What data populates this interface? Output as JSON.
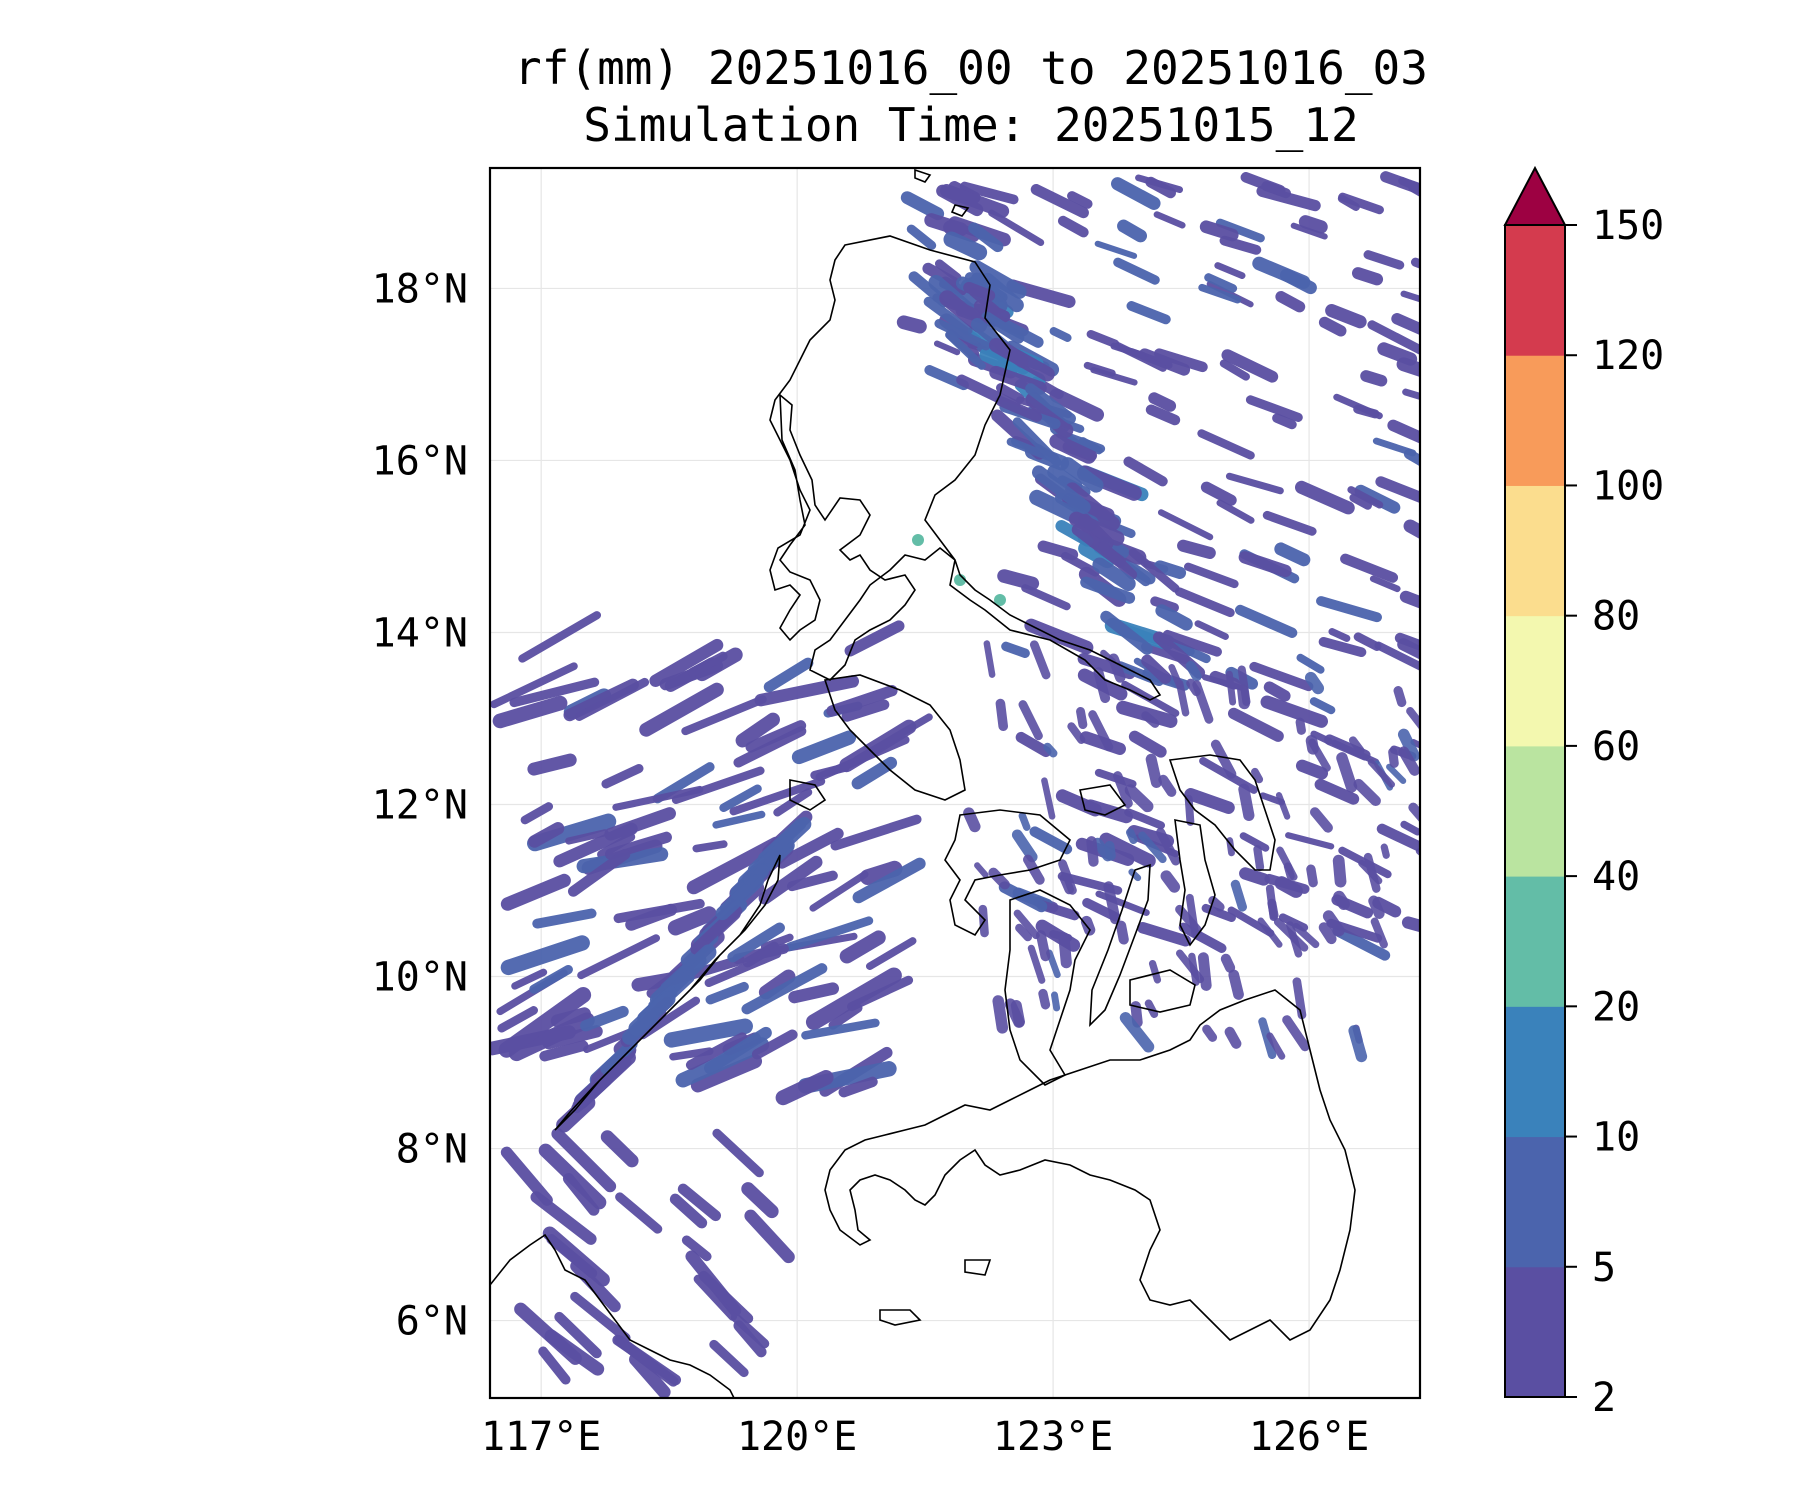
{
  "title_line1": "rf(mm) 20251016_00 to 20251016_03",
  "title_line2": "Simulation Time: 20251015_12",
  "lat_labels": [
    "6°N",
    "8°N",
    "10°N",
    "12°N",
    "14°N",
    "16°N",
    "18°N"
  ],
  "lon_labels": [
    "117°E",
    "120°E",
    "123°E",
    "126°E"
  ],
  "colorbar": {
    "labels": [
      "2",
      "5",
      "10",
      "20",
      "40",
      "60",
      "80",
      "100",
      "120",
      "150"
    ],
    "colors": [
      "#5a4fa2",
      "#4b64ad",
      "#3a82bb",
      "#63bda7",
      "#bae4a0",
      "#f3f8af",
      "#fbdd8e",
      "#f89b5a",
      "#d43b4e"
    ],
    "extend_color": "#9d0142"
  },
  "colors": {
    "rain_light": "#5a4fa2",
    "rain_moderate": "#4b64ad",
    "rain_heavy": "#3a82bb",
    "rain_peak": "#63bda7",
    "coastline": "#000000",
    "grid": "#e6e6e6"
  }
}
